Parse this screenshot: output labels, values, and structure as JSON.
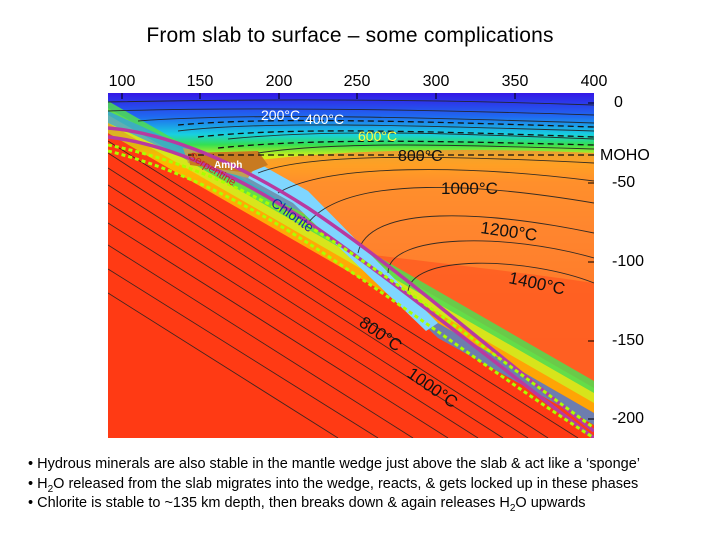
{
  "title": "From slab to surface – some complications",
  "axes": {
    "top_ticks": [
      "100",
      "150",
      "200",
      "250",
      "300",
      "350",
      "400"
    ],
    "right_ticks": [
      "0",
      "MOHO",
      "-50",
      "-100",
      "-150",
      "-200"
    ]
  },
  "labels": {
    "t200": "200°C",
    "t400": "400°C",
    "t600": "600°C",
    "t800_top": "800°C",
    "t1000_top": "1000°C",
    "t1200": "1200°C",
    "t1400": "1400°C",
    "amph": "Amph",
    "serpentine": "Serpentine",
    "chlorite": "Chlorite",
    "t800_slab": "800°C",
    "t1000_slab": "1000°C"
  },
  "bullets": {
    "b1": "• Hydrous minerals are also stable in the mantle wedge just above the slab & act like a ‘sponge’",
    "b2_pre": "• H",
    "b2_sub": "2",
    "b2_post": "O released from the slab migrates into the wedge, reacts, & gets locked up in these phases",
    "b3_pre": "• Chlorite is stable to ~135 km depth, then breaks down & again releases H",
    "b3_sub": "2",
    "b3_post": "O upwards"
  },
  "colors": {
    "hot": "#ff2a10",
    "cold": "#2233ee",
    "chlorite": "#7fd6ff",
    "serpentine": "#c7a24a",
    "slab_boundary": "#b83aa0",
    "dehydration_front": "#aaff00"
  }
}
